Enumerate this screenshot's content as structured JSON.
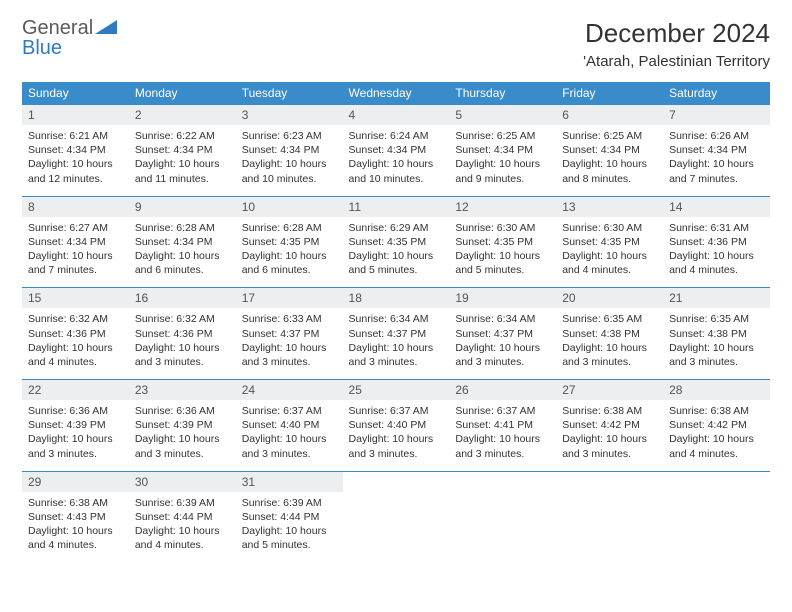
{
  "logo": {
    "general": "General",
    "blue": "Blue"
  },
  "title": "December 2024",
  "location": "'Atarah, Palestinian Territory",
  "colors": {
    "header_bg": "#3a8bc9",
    "header_fg": "#ffffff",
    "daynum_bg": "#eceeef",
    "border": "#3a8bc9",
    "logo_gray": "#5a5a5a",
    "logo_blue": "#2f7bbf"
  },
  "weekdays": [
    "Sunday",
    "Monday",
    "Tuesday",
    "Wednesday",
    "Thursday",
    "Friday",
    "Saturday"
  ],
  "weeks": [
    [
      {
        "n": "1",
        "sr": "Sunrise: 6:21 AM",
        "ss": "Sunset: 4:34 PM",
        "dl": "Daylight: 10 hours and 12 minutes."
      },
      {
        "n": "2",
        "sr": "Sunrise: 6:22 AM",
        "ss": "Sunset: 4:34 PM",
        "dl": "Daylight: 10 hours and 11 minutes."
      },
      {
        "n": "3",
        "sr": "Sunrise: 6:23 AM",
        "ss": "Sunset: 4:34 PM",
        "dl": "Daylight: 10 hours and 10 minutes."
      },
      {
        "n": "4",
        "sr": "Sunrise: 6:24 AM",
        "ss": "Sunset: 4:34 PM",
        "dl": "Daylight: 10 hours and 10 minutes."
      },
      {
        "n": "5",
        "sr": "Sunrise: 6:25 AM",
        "ss": "Sunset: 4:34 PM",
        "dl": "Daylight: 10 hours and 9 minutes."
      },
      {
        "n": "6",
        "sr": "Sunrise: 6:25 AM",
        "ss": "Sunset: 4:34 PM",
        "dl": "Daylight: 10 hours and 8 minutes."
      },
      {
        "n": "7",
        "sr": "Sunrise: 6:26 AM",
        "ss": "Sunset: 4:34 PM",
        "dl": "Daylight: 10 hours and 7 minutes."
      }
    ],
    [
      {
        "n": "8",
        "sr": "Sunrise: 6:27 AM",
        "ss": "Sunset: 4:34 PM",
        "dl": "Daylight: 10 hours and 7 minutes."
      },
      {
        "n": "9",
        "sr": "Sunrise: 6:28 AM",
        "ss": "Sunset: 4:34 PM",
        "dl": "Daylight: 10 hours and 6 minutes."
      },
      {
        "n": "10",
        "sr": "Sunrise: 6:28 AM",
        "ss": "Sunset: 4:35 PM",
        "dl": "Daylight: 10 hours and 6 minutes."
      },
      {
        "n": "11",
        "sr": "Sunrise: 6:29 AM",
        "ss": "Sunset: 4:35 PM",
        "dl": "Daylight: 10 hours and 5 minutes."
      },
      {
        "n": "12",
        "sr": "Sunrise: 6:30 AM",
        "ss": "Sunset: 4:35 PM",
        "dl": "Daylight: 10 hours and 5 minutes."
      },
      {
        "n": "13",
        "sr": "Sunrise: 6:30 AM",
        "ss": "Sunset: 4:35 PM",
        "dl": "Daylight: 10 hours and 4 minutes."
      },
      {
        "n": "14",
        "sr": "Sunrise: 6:31 AM",
        "ss": "Sunset: 4:36 PM",
        "dl": "Daylight: 10 hours and 4 minutes."
      }
    ],
    [
      {
        "n": "15",
        "sr": "Sunrise: 6:32 AM",
        "ss": "Sunset: 4:36 PM",
        "dl": "Daylight: 10 hours and 4 minutes."
      },
      {
        "n": "16",
        "sr": "Sunrise: 6:32 AM",
        "ss": "Sunset: 4:36 PM",
        "dl": "Daylight: 10 hours and 3 minutes."
      },
      {
        "n": "17",
        "sr": "Sunrise: 6:33 AM",
        "ss": "Sunset: 4:37 PM",
        "dl": "Daylight: 10 hours and 3 minutes."
      },
      {
        "n": "18",
        "sr": "Sunrise: 6:34 AM",
        "ss": "Sunset: 4:37 PM",
        "dl": "Daylight: 10 hours and 3 minutes."
      },
      {
        "n": "19",
        "sr": "Sunrise: 6:34 AM",
        "ss": "Sunset: 4:37 PM",
        "dl": "Daylight: 10 hours and 3 minutes."
      },
      {
        "n": "20",
        "sr": "Sunrise: 6:35 AM",
        "ss": "Sunset: 4:38 PM",
        "dl": "Daylight: 10 hours and 3 minutes."
      },
      {
        "n": "21",
        "sr": "Sunrise: 6:35 AM",
        "ss": "Sunset: 4:38 PM",
        "dl": "Daylight: 10 hours and 3 minutes."
      }
    ],
    [
      {
        "n": "22",
        "sr": "Sunrise: 6:36 AM",
        "ss": "Sunset: 4:39 PM",
        "dl": "Daylight: 10 hours and 3 minutes."
      },
      {
        "n": "23",
        "sr": "Sunrise: 6:36 AM",
        "ss": "Sunset: 4:39 PM",
        "dl": "Daylight: 10 hours and 3 minutes."
      },
      {
        "n": "24",
        "sr": "Sunrise: 6:37 AM",
        "ss": "Sunset: 4:40 PM",
        "dl": "Daylight: 10 hours and 3 minutes."
      },
      {
        "n": "25",
        "sr": "Sunrise: 6:37 AM",
        "ss": "Sunset: 4:40 PM",
        "dl": "Daylight: 10 hours and 3 minutes."
      },
      {
        "n": "26",
        "sr": "Sunrise: 6:37 AM",
        "ss": "Sunset: 4:41 PM",
        "dl": "Daylight: 10 hours and 3 minutes."
      },
      {
        "n": "27",
        "sr": "Sunrise: 6:38 AM",
        "ss": "Sunset: 4:42 PM",
        "dl": "Daylight: 10 hours and 3 minutes."
      },
      {
        "n": "28",
        "sr": "Sunrise: 6:38 AM",
        "ss": "Sunset: 4:42 PM",
        "dl": "Daylight: 10 hours and 4 minutes."
      }
    ],
    [
      {
        "n": "29",
        "sr": "Sunrise: 6:38 AM",
        "ss": "Sunset: 4:43 PM",
        "dl": "Daylight: 10 hours and 4 minutes."
      },
      {
        "n": "30",
        "sr": "Sunrise: 6:39 AM",
        "ss": "Sunset: 4:44 PM",
        "dl": "Daylight: 10 hours and 4 minutes."
      },
      {
        "n": "31",
        "sr": "Sunrise: 6:39 AM",
        "ss": "Sunset: 4:44 PM",
        "dl": "Daylight: 10 hours and 5 minutes."
      },
      null,
      null,
      null,
      null
    ]
  ]
}
